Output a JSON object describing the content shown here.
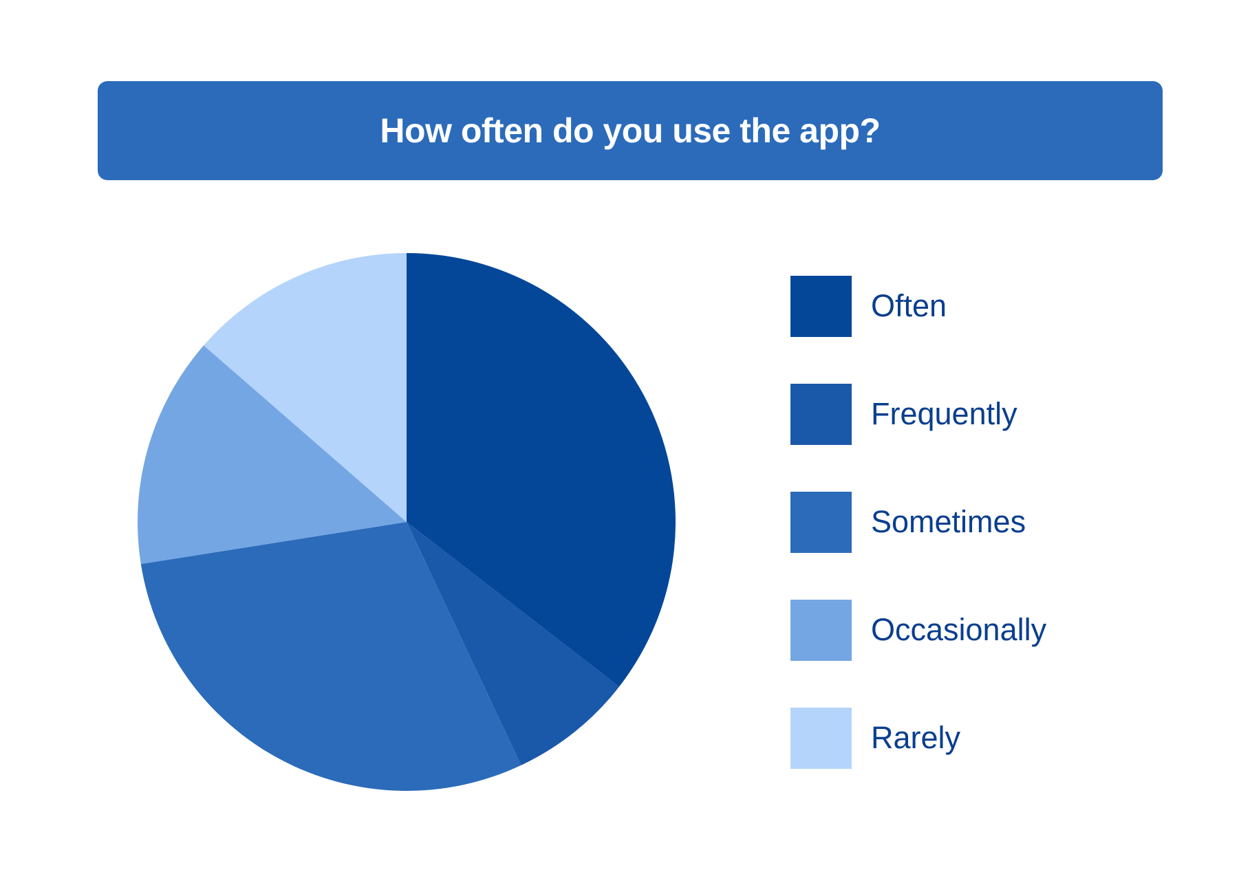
{
  "chart_data": {
    "type": "pie",
    "title": "How often do you use the app?",
    "categories": [
      "Often",
      "Frequently",
      "Sometimes",
      "Occasionally",
      "Rarely"
    ],
    "values": [
      35.5,
      7.5,
      29.5,
      13.9,
      13.6
    ],
    "unit": "%",
    "colors": [
      "#044799",
      "#1a58a9",
      "#2b6bba",
      "#74a6e4",
      "#b4d4fb"
    ],
    "start_angle_deg": 0,
    "direction": "clockwise",
    "legend_position": "right"
  }
}
